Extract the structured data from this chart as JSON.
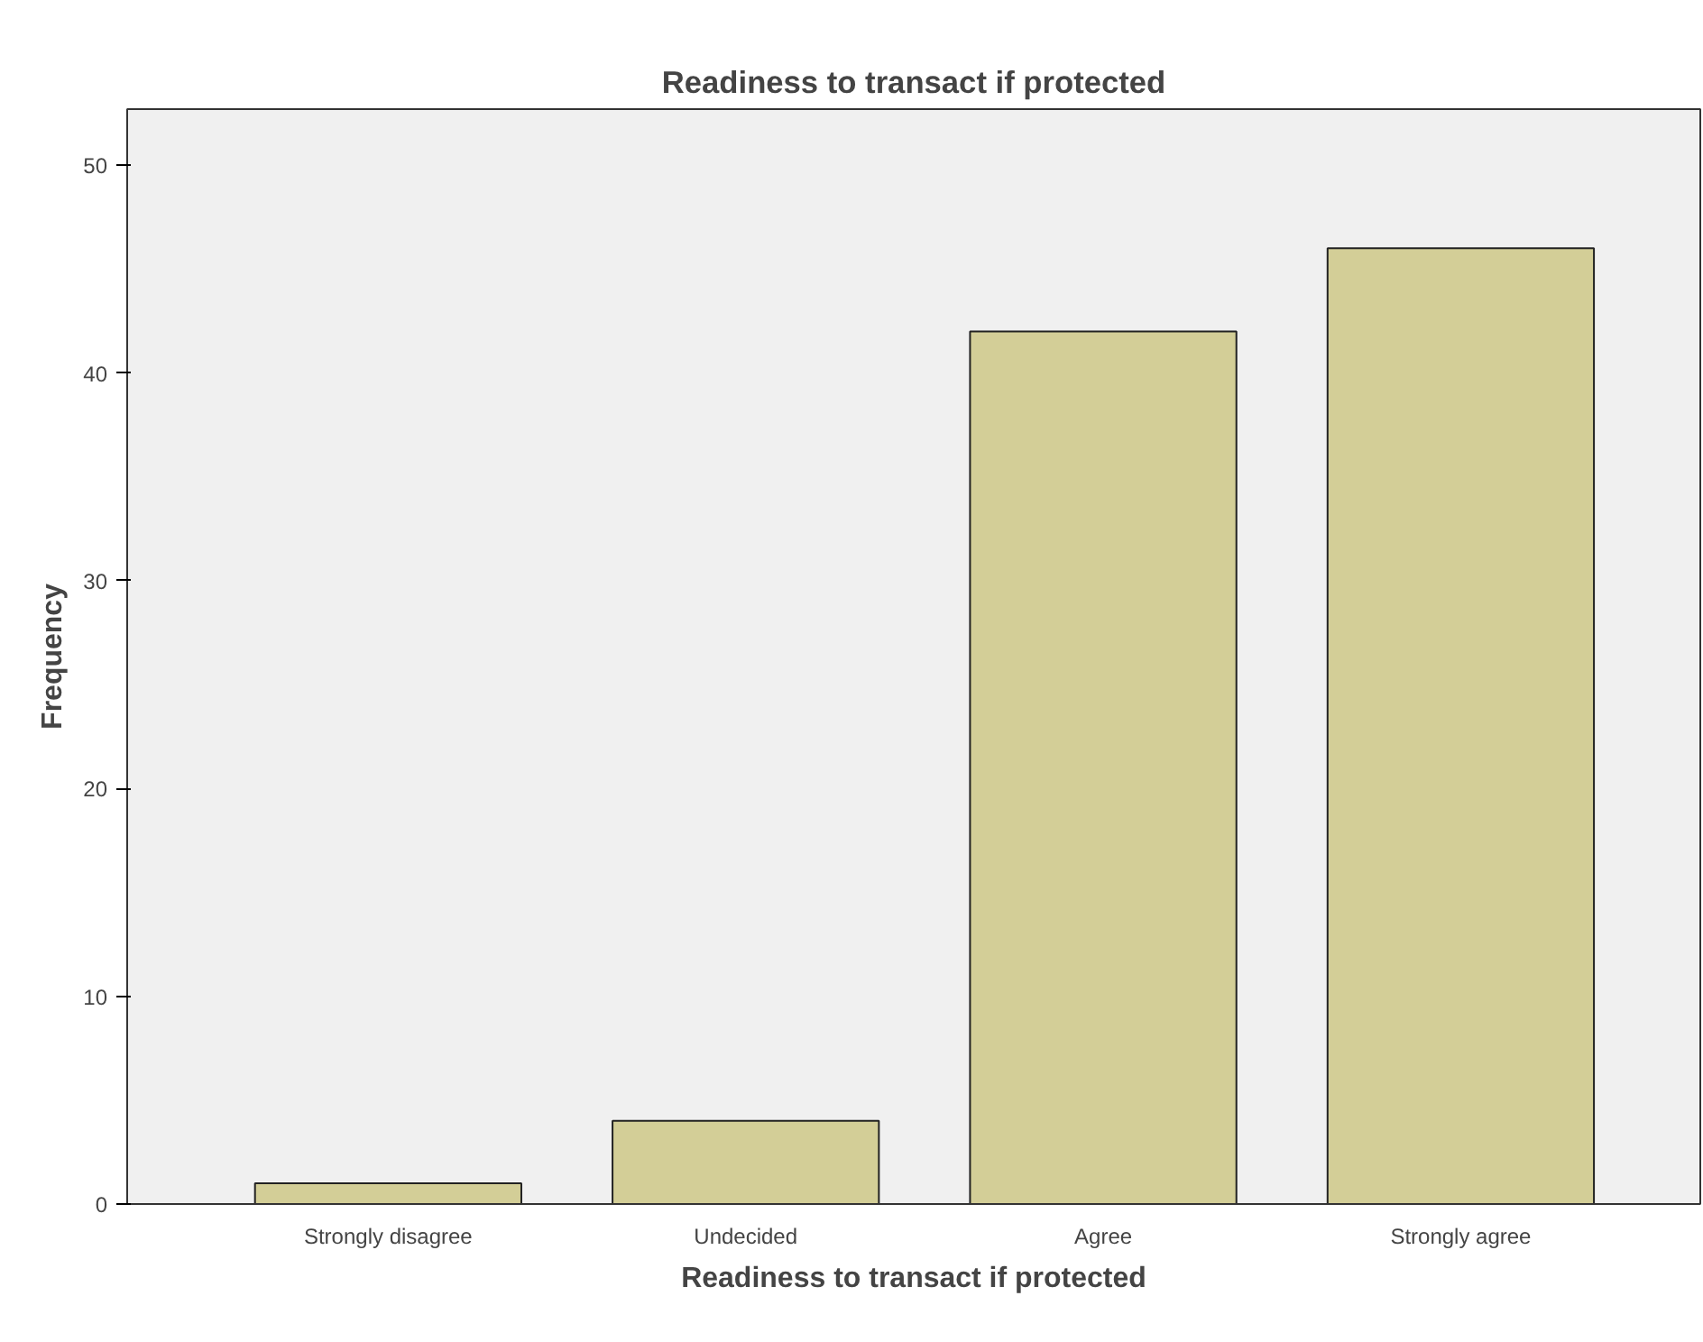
{
  "chart_data": {
    "type": "bar",
    "title": "Readiness to transact if protected",
    "xlabel": "Readiness to transact if protected",
    "ylabel": "Frequency",
    "categories": [
      "Strongly disagree",
      "Undecided",
      "Agree",
      "Strongly agree"
    ],
    "values": [
      1,
      4,
      42,
      46
    ],
    "color": "#d3ce97",
    "ylim": [
      0,
      52.7
    ],
    "yticks": [
      0,
      10,
      20,
      30,
      40,
      50
    ],
    "grid": false
  }
}
